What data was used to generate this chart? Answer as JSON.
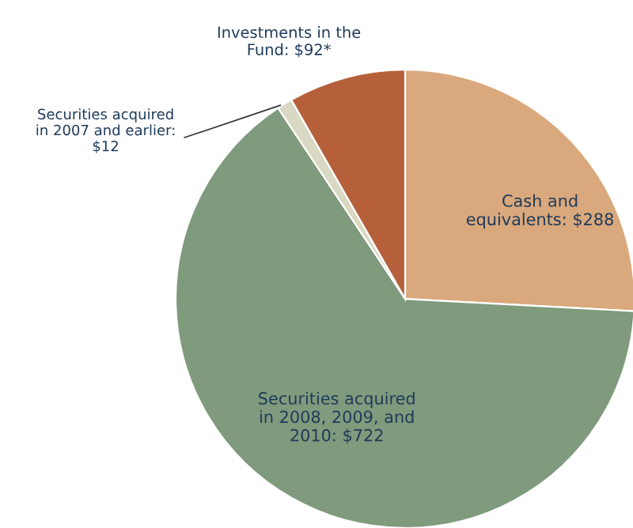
{
  "chart_data": {
    "type": "pie",
    "categories": [
      "Cash and\nequivalents: $288",
      "Securities acquired\nin 2008, 2009, and\n2010: $722",
      "Securities acquired\nin 2007 and earlier:\n$12",
      "Investments in the\nFund: $92*"
    ],
    "values": [
      288,
      722,
      12,
      92
    ],
    "colors": [
      "#d9a87c",
      "#7f9a7c",
      "#d9d9c3",
      "#b5603b"
    ]
  }
}
